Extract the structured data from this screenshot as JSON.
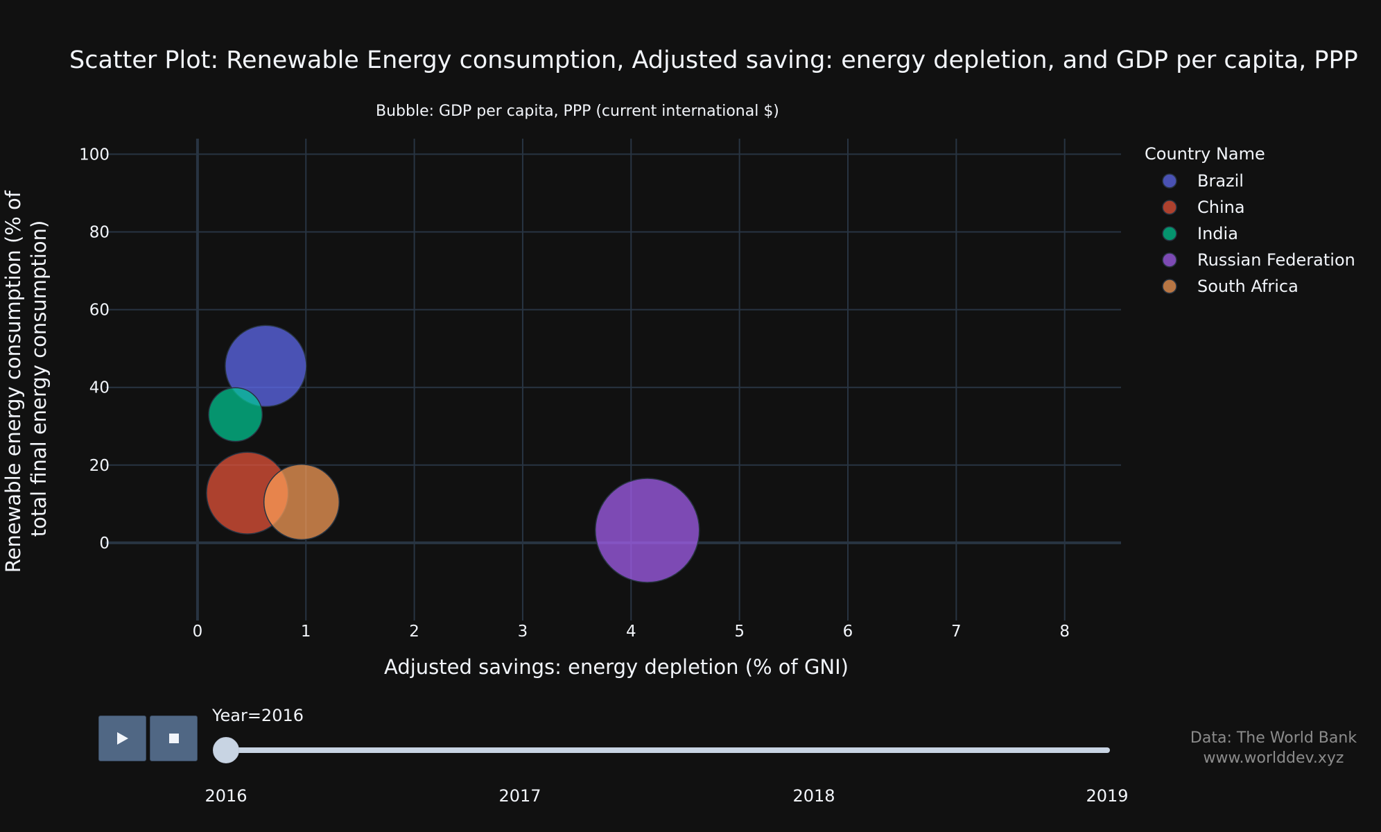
{
  "chart_data": {
    "type": "scatter",
    "title": "Scatter Plot: Renewable Energy consumption, Adjusted saving: energy depletion, and GDP per capita, PPP",
    "subtitle": "Bubble: GDP per capita, PPP (current international $)",
    "xlabel": "Adjusted savings: energy depletion (% of GNI)",
    "ylabel_lines": [
      "Renewable energy consumption (% of",
      "total final energy consumption)"
    ],
    "xlim": [
      -0.85,
      8.52
    ],
    "ylim": [
      -20,
      104
    ],
    "xticks": [
      0,
      1,
      2,
      3,
      4,
      5,
      6,
      7,
      8
    ],
    "yticks": [
      0,
      20,
      40,
      60,
      80,
      100
    ],
    "grid": true,
    "legend_title": "Country Name",
    "legend_position": "right",
    "bubble_metric": "GDP per capita, PPP (current international $)",
    "series": [
      {
        "name": "Brazil",
        "color": "#636efa",
        "x": 0.63,
        "y": 45.5,
        "size": 15100
      },
      {
        "name": "China",
        "color": "#ef553b",
        "x": 0.46,
        "y": 12.8,
        "size": 15300
      },
      {
        "name": "India",
        "color": "#00cc96",
        "x": 0.35,
        "y": 33.0,
        "size": 6600
      },
      {
        "name": "Russian Federation",
        "color": "#ab63fa",
        "x": 4.15,
        "y": 3.2,
        "size": 24800
      },
      {
        "name": "South Africa",
        "color": "#ffa15a",
        "x": 0.96,
        "y": 10.5,
        "size": 13000
      }
    ]
  },
  "animation": {
    "slider_prefix": "Year=",
    "current_year": "2016",
    "steps": [
      "2016",
      "2017",
      "2018",
      "2019"
    ],
    "progress": 0
  },
  "source": {
    "line1": "Data: The World Bank",
    "line2": "www.worlddev.xyz"
  }
}
